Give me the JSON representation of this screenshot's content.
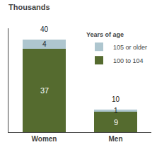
{
  "chart_data": {
    "type": "bar",
    "stacked": true,
    "title": "Thousands",
    "categories": [
      "Women",
      "Men"
    ],
    "series": [
      {
        "name": "100 to 104",
        "color": "#556b2f",
        "values": [
          37,
          9
        ]
      },
      {
        "name": "105 or older",
        "color": "#aec6cf",
        "values": [
          4,
          1
        ]
      }
    ],
    "totals": [
      40,
      10
    ],
    "legend_title": "Years of age",
    "legend": "upper right",
    "data_labels": true,
    "ylim": [
      0,
      46
    ],
    "yticks": [],
    "tick_labels": "x",
    "grid": false
  }
}
